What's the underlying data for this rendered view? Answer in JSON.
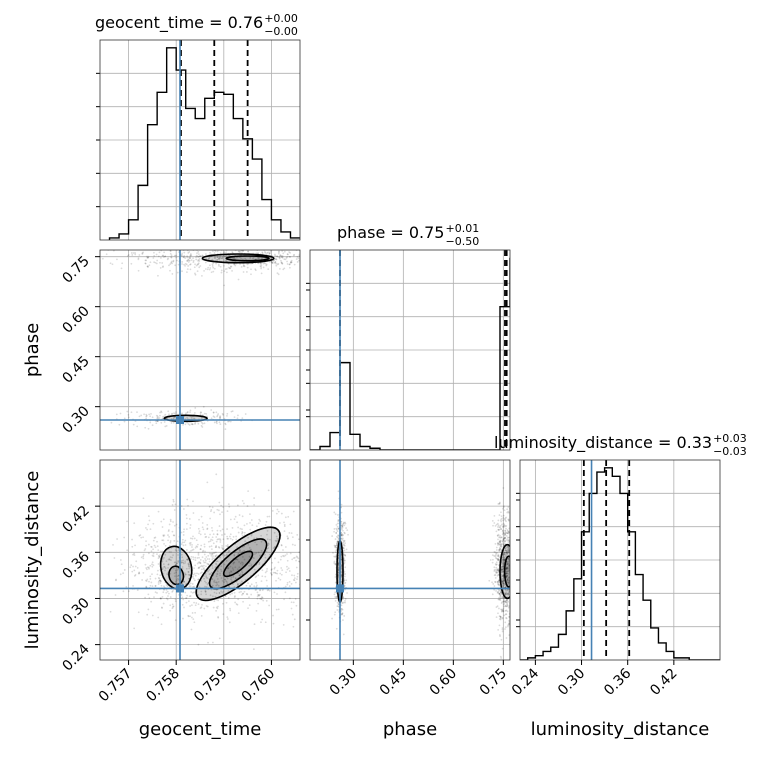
{
  "chart_data": {
    "type": "corner",
    "parameters": [
      "geocent_time",
      "phase",
      "luminosity_distance"
    ],
    "truth": {
      "geocent_time": 0.75808,
      "phase": 0.26,
      "luminosity_distance": 0.313
    },
    "colors": {
      "truth": "#4682b4",
      "contour": "#000000",
      "grid": "#b0b0b0"
    },
    "grid": true,
    "titles": [
      {
        "param": "geocent_time",
        "main": "geocent_time = 0.76",
        "sup": "+0.00",
        "sub": "−0.00"
      },
      {
        "param": "phase",
        "main": "phase = 0.75",
        "sup": "+0.01",
        "sub": "−0.50"
      },
      {
        "param": "luminosity_distance",
        "main": "luminosity_distance = 0.33",
        "sup": "+0.03",
        "sub": "−0.03"
      }
    ],
    "axes": {
      "geocent_time": {
        "range": [
          0.7564,
          0.7606
        ],
        "ticks": [
          "0.757",
          "0.758",
          "0.759",
          "0.760"
        ],
        "tick_values": [
          0.757,
          0.758,
          0.759,
          0.76
        ],
        "label": "geocent_time"
      },
      "phase": {
        "range": [
          0.17,
          0.77
        ],
        "ticks": [
          "0.30",
          "0.45",
          "0.60",
          "0.75"
        ],
        "tick_values": [
          0.3,
          0.45,
          0.6,
          0.75
        ],
        "label": "phase"
      },
      "luminosity_distance": {
        "range": [
          0.22,
          0.48
        ],
        "ticks": [
          "0.24",
          "0.30",
          "0.36",
          "0.42"
        ],
        "tick_values": [
          0.24,
          0.3,
          0.36,
          0.42
        ],
        "label": "luminosity_distance"
      }
    },
    "histograms": {
      "geocent_time": {
        "bin_edges": [
          0.7566,
          0.7568,
          0.757,
          0.7572,
          0.7574,
          0.7576,
          0.7578,
          0.758,
          0.7582,
          0.7584,
          0.7586,
          0.7588,
          0.759,
          0.7592,
          0.7594,
          0.7596,
          0.7598,
          0.76,
          0.7602,
          0.7604,
          0.7606
        ],
        "counts": [
          1,
          3,
          10,
          27,
          57,
          73,
          95,
          84,
          65,
          60,
          70,
          73,
          72,
          60,
          50,
          40,
          20,
          10,
          4,
          1
        ],
        "quantile_lines": [
          0.7581,
          0.7588,
          0.7595
        ]
      },
      "phase": {
        "bin_edges": [
          0.17,
          0.2,
          0.23,
          0.26,
          0.29,
          0.32,
          0.35,
          0.38,
          0.41,
          0.44,
          0.47,
          0.5,
          0.53,
          0.56,
          0.59,
          0.62,
          0.65,
          0.68,
          0.71,
          0.74,
          0.77
        ],
        "counts": [
          0,
          2,
          10,
          50,
          9,
          2,
          1,
          0,
          0,
          0,
          0,
          0,
          0,
          0,
          0,
          0,
          0,
          0,
          0,
          82,
          110
        ],
        "quantile_lines": [
          0.26,
          0.755,
          0.76
        ]
      },
      "luminosity_distance": {
        "bin_edges": [
          0.22,
          0.23,
          0.24,
          0.25,
          0.26,
          0.27,
          0.28,
          0.29,
          0.3,
          0.31,
          0.32,
          0.33,
          0.34,
          0.35,
          0.36,
          0.37,
          0.38,
          0.39,
          0.4,
          0.41,
          0.42,
          0.43,
          0.44,
          0.45,
          0.46,
          0.47,
          0.48
        ],
        "counts": [
          0,
          1,
          2,
          4,
          6,
          12,
          23,
          38,
          60,
          78,
          88,
          90,
          86,
          78,
          60,
          40,
          28,
          15,
          8,
          4,
          1,
          1,
          0,
          0,
          0,
          0
        ],
        "quantile_lines": [
          0.303,
          0.332,
          0.362
        ]
      }
    },
    "density_panels": [
      {
        "x": "geocent_time",
        "y": "phase",
        "clusters": [
          {
            "cx": 0.7593,
            "cy": 0.745,
            "rx": 0.0013,
            "ry": 0.02,
            "n": 700
          },
          {
            "cx": 0.7581,
            "cy": 0.265,
            "rx": 0.0006,
            "ry": 0.012,
            "n": 220
          }
        ],
        "contours": [
          {
            "cx": 0.7593,
            "cy": 0.745,
            "rx": 0.00075,
            "ry": 0.013,
            "rot": 0
          },
          {
            "cx": 0.7595,
            "cy": 0.745,
            "rx": 0.00045,
            "ry": 0.007,
            "rot": 0
          },
          {
            "cx": 0.7582,
            "cy": 0.265,
            "rx": 0.00045,
            "ry": 0.009,
            "rot": 0
          }
        ]
      },
      {
        "x": "geocent_time",
        "y": "luminosity_distance",
        "clusters": [
          {
            "cx": 0.7593,
            "cy": 0.345,
            "rx": 0.001,
            "ry": 0.035,
            "n": 900
          },
          {
            "cx": 0.758,
            "cy": 0.34,
            "rx": 0.0006,
            "ry": 0.03,
            "n": 400
          }
        ],
        "contours": [
          {
            "cx": 0.7593,
            "cy": 0.345,
            "rx": 0.0011,
            "ry": 0.024,
            "rot": -40
          },
          {
            "cx": 0.7593,
            "cy": 0.345,
            "rx": 0.00075,
            "ry": 0.016,
            "rot": -40
          },
          {
            "cx": 0.7593,
            "cy": 0.345,
            "rx": 0.00038,
            "ry": 0.008,
            "rot": -40
          },
          {
            "cx": 0.758,
            "cy": 0.34,
            "rx": 0.00032,
            "ry": 0.028,
            "rot": -12
          },
          {
            "cx": 0.758,
            "cy": 0.33,
            "rx": 0.00015,
            "ry": 0.012,
            "rot": -12
          }
        ]
      },
      {
        "x": "phase",
        "y": "luminosity_distance",
        "clusters": [
          {
            "cx": 0.26,
            "cy": 0.34,
            "rx": 0.008,
            "ry": 0.035,
            "n": 500
          },
          {
            "cx": 0.755,
            "cy": 0.34,
            "rx": 0.015,
            "ry": 0.035,
            "n": 900
          }
        ],
        "contours": [
          {
            "cx": 0.26,
            "cy": 0.335,
            "rx": 0.009,
            "ry": 0.04,
            "rot": 0
          },
          {
            "cx": 0.762,
            "cy": 0.335,
            "rx": 0.022,
            "ry": 0.035,
            "rot": 0
          },
          {
            "cx": 0.766,
            "cy": 0.335,
            "rx": 0.012,
            "ry": 0.02,
            "rot": 0
          }
        ]
      }
    ]
  }
}
